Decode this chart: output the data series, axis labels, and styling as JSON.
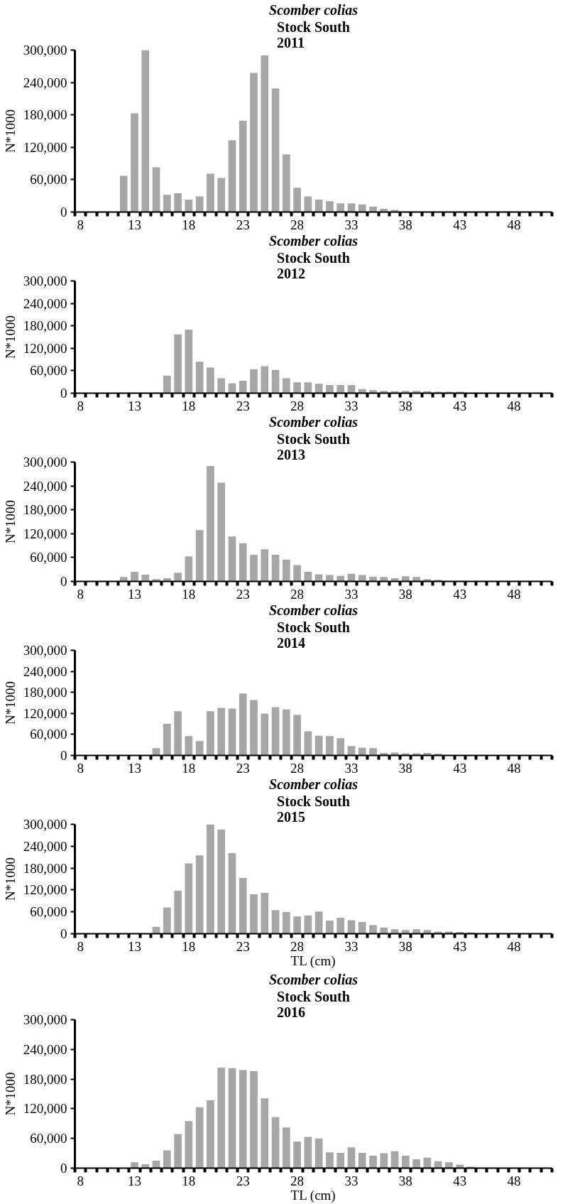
{
  "chart_data": [
    {
      "type": "bar",
      "title": "Scomber colias",
      "subtitle": "Stock South\n2011",
      "ylabel": "N*1000",
      "color": "#a6a6a6",
      "grid": false,
      "categories": [
        "8",
        null,
        null,
        null,
        null,
        "13",
        null,
        null,
        null,
        null,
        "18",
        null,
        null,
        null,
        null,
        "23",
        null,
        null,
        null,
        null,
        "28",
        null,
        null,
        null,
        null,
        "33",
        null,
        null,
        null,
        null,
        "38",
        null,
        null,
        null,
        null,
        "43",
        null,
        null,
        null,
        null,
        "48",
        null,
        null,
        null
      ],
      "values": [
        0,
        0,
        0,
        0,
        67000,
        183000,
        300000,
        83000,
        32000,
        35000,
        23000,
        29000,
        71000,
        63000,
        133000,
        169000,
        258000,
        290000,
        229000,
        107000,
        45000,
        29000,
        23000,
        20000,
        16000,
        16000,
        14000,
        10000,
        6000,
        4000,
        0,
        0,
        0,
        0,
        0,
        0,
        0,
        0,
        0,
        0,
        0,
        0,
        0,
        0
      ],
      "ylim": [
        0,
        300000
      ],
      "yticks": [
        0,
        {
          "value": 60000,
          "label": "60,000"
        },
        {
          "value": 120000,
          "label": "120,000"
        },
        {
          "value": 180000,
          "label": "180,000"
        },
        {
          "value": 240000,
          "label": "240,000"
        },
        {
          "value": 300000,
          "label": "300,000"
        }
      ]
    },
    {
      "type": "bar",
      "title": "Scomber colias",
      "subtitle": "Stock South\n2012",
      "ylabel": "N*1000",
      "color": "#a6a6a6",
      "grid": false,
      "categories": [
        "8",
        null,
        null,
        null,
        null,
        "13",
        null,
        null,
        null,
        null,
        "18",
        null,
        null,
        null,
        null,
        "23",
        null,
        null,
        null,
        null,
        "28",
        null,
        null,
        null,
        null,
        "33",
        null,
        null,
        null,
        null,
        "38",
        null,
        null,
        null,
        null,
        "43",
        null,
        null,
        null,
        null,
        "48",
        null,
        null,
        null
      ],
      "values": [
        0,
        0,
        0,
        0,
        0,
        0,
        0,
        0,
        47000,
        157000,
        170000,
        84000,
        69000,
        40000,
        26000,
        33000,
        64000,
        72000,
        62000,
        40000,
        29000,
        29000,
        25000,
        22000,
        22000,
        22000,
        11000,
        8000,
        6000,
        5000,
        6000,
        6000,
        5000,
        4000,
        4000,
        4000,
        0,
        0,
        0,
        0,
        0,
        0,
        0,
        0
      ],
      "ylim": [
        0,
        300000
      ],
      "yticks": [
        0,
        {
          "value": 60000,
          "label": "60,000"
        },
        {
          "value": 120000,
          "label": "120,000"
        },
        {
          "value": 180000,
          "label": "180,000"
        },
        {
          "value": 240000,
          "label": "240,000"
        },
        {
          "value": 300000,
          "label": "300,000"
        }
      ]
    },
    {
      "type": "bar",
      "title": "Scomber colias",
      "subtitle": "Stock South\n2013",
      "ylabel": "N*1000",
      "color": "#a6a6a6",
      "grid": false,
      "categories": [
        "8",
        null,
        null,
        null,
        null,
        "13",
        null,
        null,
        null,
        null,
        "18",
        null,
        null,
        null,
        null,
        "23",
        null,
        null,
        null,
        null,
        "28",
        null,
        null,
        null,
        null,
        "33",
        null,
        null,
        null,
        null,
        "38",
        null,
        null,
        null,
        null,
        "43",
        null,
        null,
        null,
        null,
        "48",
        null,
        null,
        null
      ],
      "values": [
        0,
        0,
        0,
        0,
        11000,
        24000,
        17000,
        6000,
        8000,
        22000,
        63000,
        129000,
        290000,
        248000,
        113000,
        96000,
        67000,
        81000,
        67000,
        55000,
        41000,
        24000,
        18000,
        16000,
        14000,
        19000,
        16000,
        12000,
        11000,
        8000,
        13000,
        11000,
        6000,
        4000,
        0,
        0,
        0,
        0,
        0,
        0,
        0,
        0,
        0,
        0
      ],
      "ylim": [
        0,
        300000
      ],
      "yticks": [
        0,
        {
          "value": 60000,
          "label": "60,000"
        },
        {
          "value": 120000,
          "label": "120,000"
        },
        {
          "value": 180000,
          "label": "180,000"
        },
        {
          "value": 240000,
          "label": "240,000"
        },
        {
          "value": 300000,
          "label": "300,000"
        }
      ]
    },
    {
      "type": "bar",
      "title": "Scomber colias",
      "subtitle": "Stock South\n2014",
      "ylabel": "N*1000",
      "color": "#a6a6a6",
      "grid": false,
      "categories": [
        "8",
        null,
        null,
        null,
        null,
        "13",
        null,
        null,
        null,
        null,
        "18",
        null,
        null,
        null,
        null,
        "23",
        null,
        null,
        null,
        null,
        "28",
        null,
        null,
        null,
        null,
        "33",
        null,
        null,
        null,
        null,
        "38",
        null,
        null,
        null,
        null,
        "43",
        null,
        null,
        null,
        null,
        "48",
        null,
        null,
        null
      ],
      "values": [
        0,
        0,
        0,
        0,
        0,
        0,
        0,
        21000,
        90000,
        126000,
        55000,
        41000,
        126000,
        136000,
        134000,
        177000,
        158000,
        119000,
        138000,
        131000,
        116000,
        69000,
        56000,
        55000,
        49000,
        27000,
        22000,
        21000,
        7000,
        8000,
        6000,
        6000,
        7000,
        5000,
        0,
        0,
        0,
        0,
        0,
        0,
        0,
        0,
        0,
        0
      ],
      "ylim": [
        0,
        300000
      ],
      "yticks": [
        0,
        {
          "value": 60000,
          "label": "60,000"
        },
        {
          "value": 120000,
          "label": "120,000"
        },
        {
          "value": 180000,
          "label": "180,000"
        },
        {
          "value": 240000,
          "label": "240,000"
        },
        {
          "value": 300000,
          "label": "300,000"
        }
      ]
    },
    {
      "type": "bar",
      "title": "Scomber colias",
      "subtitle": "Stock South\n2015",
      "xlabel": "TL (cm)",
      "ylabel": "N*1000",
      "color": "#a6a6a6",
      "grid": false,
      "categories": [
        "8",
        null,
        null,
        null,
        null,
        "13",
        null,
        null,
        null,
        null,
        "18",
        null,
        null,
        null,
        null,
        "23",
        null,
        null,
        null,
        null,
        "28",
        null,
        null,
        null,
        null,
        "33",
        null,
        null,
        null,
        null,
        "38",
        null,
        null,
        null,
        null,
        "43",
        null,
        null,
        null,
        null,
        "48",
        null,
        null,
        null
      ],
      "values": [
        0,
        0,
        0,
        0,
        0,
        0,
        0,
        19000,
        72000,
        118000,
        193000,
        215000,
        300000,
        286000,
        221000,
        153000,
        108000,
        112000,
        65000,
        60000,
        47000,
        50000,
        61000,
        36000,
        44000,
        37000,
        32000,
        24000,
        17000,
        12000,
        10000,
        12000,
        10000,
        6000,
        6000,
        5000,
        4000,
        0,
        0,
        0,
        0,
        0,
        0,
        0
      ],
      "ylim": [
        0,
        300000
      ],
      "yticks": [
        0,
        {
          "value": 60000,
          "label": "60,000"
        },
        {
          "value": 120000,
          "label": "120,000"
        },
        {
          "value": 180000,
          "label": "180,000"
        },
        {
          "value": 240000,
          "label": "240,000"
        },
        {
          "value": 300000,
          "label": "300,000"
        }
      ]
    },
    {
      "type": "bar",
      "title": "Scomber colias",
      "subtitle": "Stock South\n2016",
      "xlabel": "TL (cm)",
      "ylabel": "N*1000",
      "color": "#a6a6a6",
      "grid": false,
      "categories": [
        "8",
        null,
        null,
        null,
        null,
        "13",
        null,
        null,
        null,
        null,
        "18",
        null,
        null,
        null,
        null,
        "23",
        null,
        null,
        null,
        null,
        "28",
        null,
        null,
        null,
        null,
        "33",
        null,
        null,
        null,
        null,
        "38",
        null,
        null,
        null,
        null,
        "43",
        null,
        null,
        null,
        null,
        "48",
        null,
        null,
        null
      ],
      "values": [
        0,
        0,
        0,
        0,
        0,
        12000,
        8000,
        15000,
        36000,
        69000,
        95000,
        123000,
        137000,
        203000,
        202000,
        198000,
        196000,
        141000,
        103000,
        82000,
        54000,
        63000,
        60000,
        32000,
        31000,
        42000,
        31000,
        25000,
        30000,
        34000,
        25000,
        18000,
        21000,
        14000,
        12000,
        7000,
        3000,
        0,
        0,
        0,
        0,
        0,
        0,
        0
      ],
      "ylim": [
        0,
        300000
      ],
      "yticks": [
        0,
        {
          "value": 60000,
          "label": "60,000"
        },
        {
          "value": 120000,
          "label": "120,000"
        },
        {
          "value": 180000,
          "label": "180,000"
        },
        {
          "value": 240000,
          "label": "240,000"
        },
        {
          "value": 300000,
          "label": "300,000"
        }
      ]
    }
  ]
}
